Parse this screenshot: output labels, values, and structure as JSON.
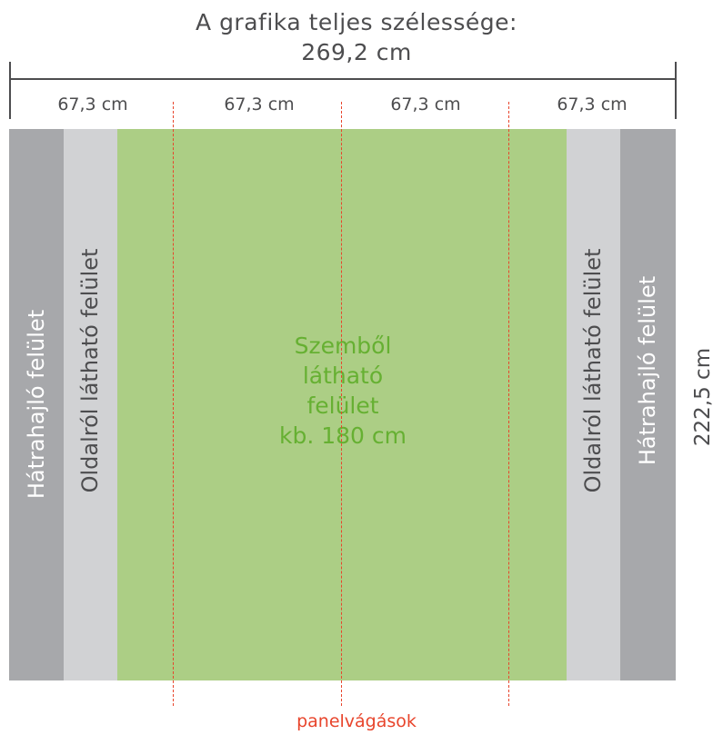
{
  "header": {
    "title_line1": "A grafika teljes szélessége:",
    "title_line2": "269,2 cm"
  },
  "segments": [
    "67,3 cm",
    "67,3 cm",
    "67,3 cm",
    "67,3 cm"
  ],
  "bands": {
    "back_fold_left": "Hátrahajló felület",
    "side_visible_left": "Oldalról látható felület",
    "side_visible_right": "Oldalról látható felület",
    "back_fold_right": "Hátrahajló felület"
  },
  "front": {
    "line1": "Szemből",
    "line2": "látható",
    "line3": "felület",
    "line4": "kb. 180 cm"
  },
  "height_label": "222,5 cm",
  "cuts_label": "panelvágások",
  "colors": {
    "back_fold": "#a7a8ab",
    "side_visible": "#d1d2d4",
    "front": "#acce85",
    "front_text": "#66b032",
    "cut_line": "#e8452c",
    "dim_line": "#4d4d4f"
  }
}
